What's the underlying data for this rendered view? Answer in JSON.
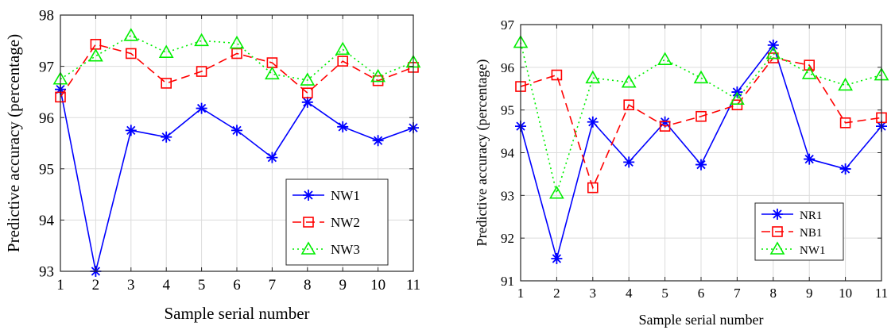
{
  "chart_data": [
    {
      "type": "line",
      "xlabel": "Sample serial number",
      "ylabel": "Predictive accuracy (percentage)",
      "xlim": [
        1,
        11
      ],
      "ylim": [
        93,
        98
      ],
      "xticks": [
        "1",
        "2",
        "3",
        "4",
        "5",
        "6",
        "7",
        "8",
        "9",
        "10",
        "11"
      ],
      "yticks": [
        "93",
        "94",
        "95",
        "96",
        "97",
        "98"
      ],
      "grid": true,
      "legend_position": "bottom-right",
      "x": [
        1,
        2,
        3,
        4,
        5,
        6,
        7,
        8,
        9,
        10,
        11
      ],
      "series": [
        {
          "name": "NW1",
          "color": "#0000ff",
          "dash": "solid",
          "marker": "asterisk",
          "values": [
            96.55,
            93.0,
            95.75,
            95.62,
            96.18,
            95.75,
            95.22,
            96.3,
            95.82,
            95.55,
            95.8
          ]
        },
        {
          "name": "NW2",
          "color": "#ff0000",
          "dash": "dashed",
          "marker": "square",
          "values": [
            96.4,
            97.43,
            97.25,
            96.67,
            96.9,
            97.25,
            97.07,
            96.48,
            97.1,
            96.72,
            96.98
          ]
        },
        {
          "name": "NW3",
          "color": "#00ee00",
          "dash": "dotted",
          "marker": "triangle",
          "values": [
            96.75,
            97.2,
            97.6,
            97.27,
            97.5,
            97.45,
            96.85,
            96.73,
            97.33,
            96.8,
            97.08
          ]
        }
      ]
    },
    {
      "type": "line",
      "xlabel": "Sample serial number",
      "ylabel": "Predictive accuracy (percentage)",
      "xlim": [
        1,
        11
      ],
      "ylim": [
        91,
        97
      ],
      "xticks": [
        "1",
        "2",
        "3",
        "4",
        "5",
        "6",
        "7",
        "8",
        "9",
        "10",
        "11"
      ],
      "yticks": [
        "91",
        "92",
        "93",
        "94",
        "95",
        "96",
        "97"
      ],
      "grid": true,
      "legend_position": "bottom-right",
      "x": [
        1,
        2,
        3,
        4,
        5,
        6,
        7,
        8,
        9,
        10,
        11
      ],
      "series": [
        {
          "name": "NR1",
          "color": "#0000ff",
          "dash": "solid",
          "marker": "asterisk",
          "values": [
            94.62,
            91.52,
            94.72,
            93.78,
            94.72,
            93.72,
            95.42,
            96.52,
            93.85,
            93.62,
            94.62
          ]
        },
        {
          "name": "NB1",
          "color": "#ff0000",
          "dash": "dashed",
          "marker": "square",
          "values": [
            95.55,
            95.82,
            93.18,
            95.12,
            94.62,
            94.85,
            95.12,
            96.22,
            96.05,
            94.7,
            94.82
          ]
        },
        {
          "name": "NW1",
          "color": "#00ee00",
          "dash": "dotted",
          "marker": "triangle",
          "values": [
            96.58,
            93.05,
            95.75,
            95.65,
            96.18,
            95.75,
            95.25,
            96.32,
            95.85,
            95.58,
            95.82
          ]
        }
      ]
    }
  ]
}
